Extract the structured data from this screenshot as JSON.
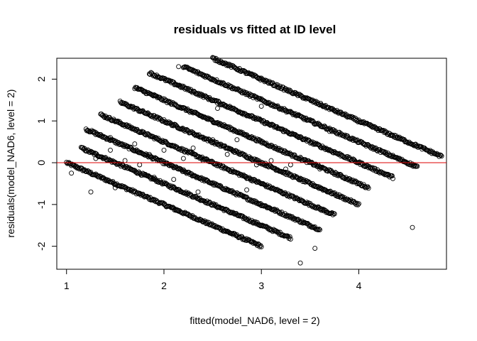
{
  "chart_data": {
    "type": "scatter",
    "title": "residuals vs fitted at ID level",
    "xlabel": "fitted(model_NAD6, level = 2)",
    "ylabel": "residuals(model_NAD6, level = 2)",
    "xlim": [
      0.9,
      4.9
    ],
    "ylim": [
      -2.55,
      2.5
    ],
    "xticks": [
      "1",
      "2",
      "3",
      "4"
    ],
    "yticks": [
      "-2",
      "-1",
      "0",
      "1",
      "2"
    ],
    "reference_line": {
      "y": 0,
      "color": "#dd0000"
    },
    "point_style": "open-circle",
    "bands": [
      {
        "intercept": 1.0,
        "x": [
          1.0,
          3.0
        ]
      },
      {
        "intercept": 1.5,
        "x": [
          1.15,
          3.3
        ]
      },
      {
        "intercept": 2.0,
        "x": [
          1.2,
          3.6
        ]
      },
      {
        "intercept": 2.5,
        "x": [
          1.35,
          3.75
        ]
      },
      {
        "intercept": 3.0,
        "x": [
          1.55,
          4.0
        ]
      },
      {
        "intercept": 3.5,
        "x": [
          1.7,
          4.1
        ]
      },
      {
        "intercept": 4.0,
        "x": [
          1.85,
          4.35
        ]
      },
      {
        "intercept": 4.5,
        "x": [
          2.2,
          4.6
        ]
      },
      {
        "intercept": 5.0,
        "x": [
          2.5,
          4.85
        ]
      }
    ],
    "band_slope": -1,
    "scattered_points": [
      [
        1.05,
        -0.25
      ],
      [
        1.25,
        -0.7
      ],
      [
        1.3,
        0.1
      ],
      [
        1.45,
        0.3
      ],
      [
        1.5,
        -0.6
      ],
      [
        1.6,
        0.05
      ],
      [
        1.7,
        0.45
      ],
      [
        1.85,
        0.2
      ],
      [
        2.0,
        0.3
      ],
      [
        2.1,
        -0.4
      ],
      [
        2.2,
        0.1
      ],
      [
        2.3,
        0.35
      ],
      [
        2.4,
        0.05
      ],
      [
        2.5,
        0.55
      ],
      [
        2.65,
        0.2
      ],
      [
        2.75,
        0.55
      ],
      [
        2.95,
        -0.05
      ],
      [
        3.1,
        0.05
      ],
      [
        3.25,
        -0.15
      ],
      [
        3.4,
        -0.4
      ],
      [
        1.45,
        0.6
      ],
      [
        1.75,
        -0.05
      ],
      [
        2.55,
        1.3
      ],
      [
        2.85,
        -0.65
      ],
      [
        3.0,
        1.35
      ],
      [
        3.6,
        -0.15
      ],
      [
        3.7,
        0.75
      ],
      [
        2.15,
        2.3
      ],
      [
        2.6,
        2.4
      ],
      [
        3.55,
        -2.05
      ],
      [
        3.4,
        -2.4
      ],
      [
        4.55,
        -1.55
      ],
      [
        3.3,
        -0.05
      ],
      [
        2.35,
        -0.7
      ],
      [
        1.9,
        -0.35
      ]
    ]
  }
}
